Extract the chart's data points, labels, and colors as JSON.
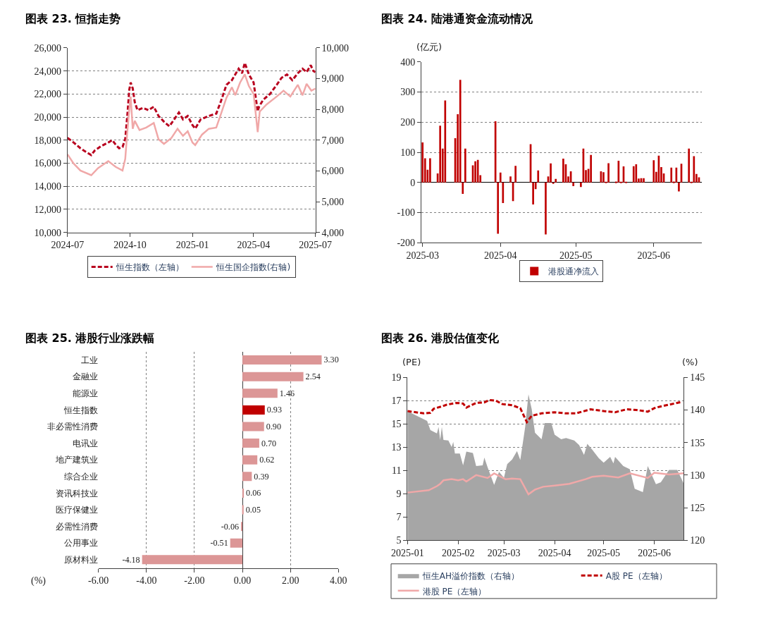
{
  "chart_data": [
    {
      "type": "line",
      "title": "图表 23. 恒指走势",
      "grid": "y",
      "legend": "bottom",
      "xlim": [
        "2024-07",
        "2025-07"
      ],
      "xticks": [
        "2024-07",
        "2024-10",
        "2025-01",
        "2025-04",
        "2025-07"
      ],
      "ylim": [
        10000,
        26000
      ],
      "yticks": [
        {
          "value": 10000,
          "label": "10,000"
        },
        {
          "value": 12000,
          "label": "12,000"
        },
        {
          "value": 14000,
          "label": "14,000"
        },
        {
          "value": 16000,
          "label": "16,000"
        },
        {
          "value": 18000,
          "label": "18,000"
        },
        {
          "value": 20000,
          "label": "20,000"
        },
        {
          "value": 22000,
          "label": "22,000"
        },
        {
          "value": 24000,
          "label": "24,000"
        },
        {
          "value": 26000,
          "label": "26,000"
        }
      ],
      "y2lim": [
        4000,
        10000
      ],
      "y2ticks": [
        {
          "value": 4000,
          "label": "4,000"
        },
        {
          "value": 5000,
          "label": "5,000"
        },
        {
          "value": 6000,
          "label": "6,000"
        },
        {
          "value": 7000,
          "label": "7,000"
        },
        {
          "value": 8000,
          "label": "8,000"
        },
        {
          "value": 9000,
          "label": "9,000"
        },
        {
          "value": 10000,
          "label": "10,000"
        }
      ],
      "series": [
        {
          "name": "恒生指数（左轴）",
          "color": "#b8001e",
          "line_style": "dashed",
          "x": [
            "2024-07-01",
            "2024-07-10",
            "2024-07-20",
            "2024-07-25",
            "2024-08-05",
            "2024-08-10",
            "2024-08-20",
            "2024-08-30",
            "2024-09-05",
            "2024-09-10",
            "2024-09-15",
            "2024-09-20",
            "2024-09-24",
            "2024-09-27",
            "2024-09-30",
            "2024-10-02",
            "2024-10-05",
            "2024-10-08",
            "2024-10-12",
            "2024-10-20",
            "2024-10-28",
            "2024-11-05",
            "2024-11-12",
            "2024-11-20",
            "2024-11-28",
            "2024-12-05",
            "2024-12-12",
            "2024-12-18",
            "2024-12-25",
            "2025-01-01",
            "2025-01-05",
            "2025-01-13",
            "2025-01-25",
            "2025-02-05",
            "2025-02-12",
            "2025-02-20",
            "2025-02-28",
            "2025-03-05",
            "2025-03-10",
            "2025-03-15",
            "2025-03-19",
            "2025-03-25",
            "2025-04-01",
            "2025-04-07",
            "2025-04-09",
            "2025-04-15",
            "2025-04-25",
            "2025-05-05",
            "2025-05-12",
            "2025-05-20",
            "2025-05-28",
            "2025-06-05",
            "2025-06-12",
            "2025-06-18",
            "2025-06-24",
            "2025-06-28",
            "2025-07-01"
          ],
          "values": [
            18200,
            17800,
            17300,
            17100,
            16700,
            17100,
            17500,
            17800,
            18000,
            17600,
            17300,
            17400,
            18100,
            20100,
            22400,
            23000,
            22500,
            21300,
            20600,
            20800,
            20600,
            20900,
            20100,
            19600,
            19200,
            19800,
            20400,
            19800,
            20100,
            19300,
            19000,
            19800,
            20100,
            20300,
            21400,
            22800,
            23200,
            23700,
            24200,
            23800,
            24700,
            23700,
            23000,
            20500,
            20900,
            21500,
            22000,
            22800,
            23400,
            23700,
            23200,
            23800,
            24200,
            23900,
            24500,
            24000,
            23900
          ]
        },
        {
          "name": "恒生国企指数(右轴)",
          "color": "#f0a8a8",
          "line_style": "solid",
          "axis": "y2",
          "x": [
            "2024-07-01",
            "2024-07-10",
            "2024-07-20",
            "2024-08-05",
            "2024-08-15",
            "2024-08-30",
            "2024-09-10",
            "2024-09-20",
            "2024-09-24",
            "2024-09-27",
            "2024-09-30",
            "2024-10-02",
            "2024-10-05",
            "2024-10-08",
            "2024-10-15",
            "2024-10-25",
            "2024-11-05",
            "2024-11-12",
            "2024-11-20",
            "2024-12-01",
            "2024-12-10",
            "2024-12-18",
            "2024-12-25",
            "2025-01-01",
            "2025-01-05",
            "2025-01-15",
            "2025-01-25",
            "2025-02-05",
            "2025-02-12",
            "2025-02-20",
            "2025-02-28",
            "2025-03-05",
            "2025-03-12",
            "2025-03-19",
            "2025-03-25",
            "2025-04-01",
            "2025-04-07",
            "2025-04-10",
            "2025-04-20",
            "2025-05-05",
            "2025-05-15",
            "2025-05-25",
            "2025-06-05",
            "2025-06-12",
            "2025-06-18",
            "2025-06-25",
            "2025-07-01"
          ],
          "values": [
            6540,
            6240,
            6010,
            5860,
            6090,
            6320,
            6130,
            6010,
            6390,
            7260,
            8010,
            8420,
            7370,
            7630,
            7330,
            7410,
            7560,
            7030,
            6880,
            7070,
            7370,
            7140,
            7290,
            6920,
            6840,
            7180,
            7370,
            7410,
            7860,
            8380,
            8720,
            8460,
            8870,
            9140,
            8760,
            8500,
            7260,
            7930,
            8160,
            8420,
            8610,
            8420,
            8800,
            8460,
            8830,
            8610,
            8680
          ]
        }
      ]
    },
    {
      "type": "bar",
      "title": "图表 24. 陆港通资金流动情况",
      "ylabel": "(亿元)",
      "grid": "y",
      "legend": "bottom",
      "xlim": [
        "2025-02-28T12:00",
        "2025-06-20"
      ],
      "xticks": [
        "2025-03",
        "2025-04",
        "2025-05",
        "2025-06"
      ],
      "ylim": [
        -200,
        400
      ],
      "yticks": [
        -200,
        -100,
        0,
        100,
        200,
        300,
        400
      ],
      "x": [
        "2025-03-01",
        "2025-03-02",
        "2025-03-03",
        "2025-03-04",
        "2025-03-07",
        "2025-03-08",
        "2025-03-09",
        "2025-03-10",
        "2025-03-14",
        "2025-03-15",
        "2025-03-16",
        "2025-03-17",
        "2025-03-18",
        "2025-03-21",
        "2025-03-22",
        "2025-03-23",
        "2025-03-24",
        "2025-03-30",
        "2025-03-31",
        "2025-04-01",
        "2025-04-02",
        "2025-04-05",
        "2025-04-06",
        "2025-04-07",
        "2025-04-13",
        "2025-04-14",
        "2025-04-15",
        "2025-04-16",
        "2025-04-19",
        "2025-04-20",
        "2025-04-21",
        "2025-04-22",
        "2025-04-23",
        "2025-04-26",
        "2025-04-27",
        "2025-04-28",
        "2025-04-29",
        "2025-04-30",
        "2025-05-03",
        "2025-05-04",
        "2025-05-05",
        "2025-05-06",
        "2025-05-07",
        "2025-05-11",
        "2025-05-12",
        "2025-05-13",
        "2025-05-14",
        "2025-05-17",
        "2025-05-18",
        "2025-05-19",
        "2025-05-20",
        "2025-05-21",
        "2025-05-24",
        "2025-05-25",
        "2025-05-26",
        "2025-05-27",
        "2025-05-28",
        "2025-06-01",
        "2025-06-02",
        "2025-06-03",
        "2025-06-04",
        "2025-06-05",
        "2025-06-08",
        "2025-06-09",
        "2025-06-10",
        "2025-06-11",
        "2025-06-12",
        "2025-06-15",
        "2025-06-16",
        "2025-06-17",
        "2025-06-18",
        "2025-06-19"
      ],
      "series": [
        {
          "name": "港股通净流入",
          "color": "#c00000",
          "values": [
            133,
            80,
            42,
            80,
            30,
            188,
            112,
            272,
            147,
            226,
            340,
            -38,
            112,
            57,
            70,
            75,
            24,
            203,
            -170,
            33,
            -68,
            20,
            -62,
            55,
            127,
            -73,
            -22,
            40,
            -172,
            20,
            63,
            -3,
            12,
            79,
            60,
            20,
            37,
            -12,
            -15,
            112,
            41,
            45,
            91,
            37,
            34,
            2,
            64,
            3,
            72,
            2,
            53,
            2,
            54,
            60,
            13,
            14,
            14,
            74,
            35,
            89,
            51,
            30,
            49,
            3,
            49,
            -30,
            62,
            112,
            2,
            87,
            28,
            17
          ]
        }
      ]
    },
    {
      "type": "bar",
      "title": "图表 25. 港股行业涨跌幅",
      "orientation": "horizontal",
      "xlabel": "(%)",
      "grid": "x",
      "categories": [
        "工业",
        "金融业",
        "能源业",
        "恒生指数",
        "非必需性消费",
        "电讯业",
        "地产建筑业",
        "综合企业",
        "资讯科技业",
        "医疗保健业",
        "必需性消费",
        "公用事业",
        "原材料业"
      ],
      "values": [
        3.3,
        2.54,
        1.46,
        0.93,
        0.9,
        0.7,
        0.62,
        0.39,
        0.06,
        0.05,
        -0.06,
        -0.51,
        -4.18
      ],
      "value_labels": [
        "3.30",
        "2.54",
        "1.46",
        "0.93",
        "0.90",
        "0.70",
        "0.62",
        "0.39",
        "0.06",
        "0.05",
        "-0.06",
        "-0.51",
        "-4.18"
      ],
      "colors": [
        "#dc9696",
        "#dc9696",
        "#dc9696",
        "#c00000",
        "#dc9696",
        "#dc9696",
        "#dc9696",
        "#dc9696",
        "#dc9696",
        "#dc9696",
        "#dc9696",
        "#dc9696",
        "#dc9696"
      ],
      "xlim": [
        -6,
        4
      ],
      "xticks": [
        {
          "value": -6,
          "label": "-6.00"
        },
        {
          "value": -4,
          "label": "-4.00"
        },
        {
          "value": -2,
          "label": "-2.00"
        },
        {
          "value": 0,
          "label": "0.00"
        },
        {
          "value": 2,
          "label": "2.00"
        },
        {
          "value": 4,
          "label": "4.00"
        }
      ]
    },
    {
      "type": "line",
      "title": "图表 26. 港股估值变化",
      "ylabel": "(PE)",
      "y2label": "(%)",
      "grid": "y",
      "legend": "bottom",
      "xlim": [
        "2025-01-01",
        "2025-06-19"
      ],
      "xticks": [
        "2025-01",
        "2025-02",
        "2025-03",
        "2025-04",
        "2025-05",
        "2025-06"
      ],
      "ylim": [
        5,
        19
      ],
      "yticks": [
        5,
        7,
        9,
        11,
        13,
        15,
        17,
        19
      ],
      "y2lim": [
        120,
        145
      ],
      "y2ticks": [
        120,
        125,
        130,
        135,
        140,
        145
      ],
      "series": [
        {
          "name": "恒生AH溢价指数（右轴）",
          "type": "area",
          "axis": "y2",
          "color": "#a6a6a6",
          "x": [
            "2025-01-01",
            "2025-01-13",
            "2025-01-15",
            "2025-01-19",
            "2025-01-20",
            "2025-01-21",
            "2025-01-22",
            "2025-01-23",
            "2025-01-26",
            "2025-01-28",
            "2025-01-29",
            "2025-01-30",
            "2025-02-02",
            "2025-02-04",
            "2025-02-06",
            "2025-02-10",
            "2025-02-12",
            "2025-02-16",
            "2025-02-17",
            "2025-02-19",
            "2025-02-23",
            "2025-02-26",
            "2025-03-01",
            "2025-03-03",
            "2025-03-06",
            "2025-03-09",
            "2025-03-11",
            "2025-03-14",
            "2025-03-16",
            "2025-03-18",
            "2025-03-20",
            "2025-03-24",
            "2025-03-26",
            "2025-03-30",
            "2025-04-01",
            "2025-04-05",
            "2025-04-08",
            "2025-04-13",
            "2025-04-16",
            "2025-04-19",
            "2025-04-21",
            "2025-04-24",
            "2025-04-28",
            "2025-05-01",
            "2025-05-05",
            "2025-05-07",
            "2025-05-08",
            "2025-05-13",
            "2025-05-17",
            "2025-05-20",
            "2025-05-25",
            "2025-05-28",
            "2025-06-02",
            "2025-06-05",
            "2025-06-10",
            "2025-06-15",
            "2025-06-19"
          ],
          "values": [
            139.8,
            138.3,
            136.9,
            136.4,
            137.4,
            135.4,
            137.4,
            135.4,
            135.3,
            134.3,
            135.1,
            133.3,
            133.3,
            131.5,
            133.6,
            133.4,
            131.4,
            131.5,
            132.7,
            131.2,
            128.5,
            130.5,
            129.6,
            131.7,
            132.4,
            133.7,
            132.3,
            137.4,
            142.4,
            140.1,
            136.5,
            135.5,
            138.0,
            138.0,
            136.2,
            135.5,
            135.7,
            135.3,
            134.6,
            133.1,
            134.8,
            133.9,
            132.6,
            131.9,
            132.8,
            131.8,
            132.8,
            131.4,
            130.9,
            127.9,
            127.4,
            131.4,
            128.6,
            128.9,
            130.8,
            130.8,
            128.7
          ]
        },
        {
          "name": "A股 PE（左轴）",
          "color": "#c00000",
          "line_style": "dashed",
          "x": [
            "2025-01-01",
            "2025-01-11",
            "2025-01-15",
            "2025-01-17",
            "2025-01-22",
            "2025-01-25",
            "2025-01-31",
            "2025-02-04",
            "2025-02-06",
            "2025-02-12",
            "2025-02-17",
            "2025-02-20",
            "2025-02-24",
            "2025-02-28",
            "2025-03-06",
            "2025-03-11",
            "2025-03-15",
            "2025-03-18",
            "2025-03-24",
            "2025-04-01",
            "2025-04-08",
            "2025-04-14",
            "2025-04-23",
            "2025-05-01",
            "2025-05-08",
            "2025-05-15",
            "2025-05-21",
            "2025-05-28",
            "2025-06-01",
            "2025-06-05",
            "2025-06-10",
            "2025-06-18"
          ],
          "values": [
            16.1,
            15.9,
            15.95,
            16.3,
            16.5,
            16.65,
            16.8,
            16.75,
            16.4,
            16.8,
            16.85,
            17.05,
            17.0,
            16.7,
            16.6,
            16.35,
            15.15,
            15.7,
            15.9,
            16.0,
            15.9,
            15.9,
            16.25,
            16.1,
            16.0,
            16.25,
            16.2,
            16.05,
            16.35,
            16.5,
            16.65,
            16.9
          ]
        },
        {
          "name": "港股 PE（左轴）",
          "color": "#f0a8a8",
          "line_style": "solid",
          "x": [
            "2025-01-01",
            "2025-01-14",
            "2025-01-19",
            "2025-01-21",
            "2025-01-23",
            "2025-01-28",
            "2025-02-01",
            "2025-02-04",
            "2025-02-06",
            "2025-02-12",
            "2025-02-19",
            "2025-02-23",
            "2025-03-02",
            "2025-03-06",
            "2025-03-11",
            "2025-03-16",
            "2025-03-20",
            "2025-03-25",
            "2025-04-01",
            "2025-04-10",
            "2025-04-20",
            "2025-04-24",
            "2025-05-01",
            "2025-05-10",
            "2025-05-17",
            "2025-05-28",
            "2025-06-01",
            "2025-06-10",
            "2025-06-19"
          ],
          "values": [
            9.1,
            9.3,
            9.65,
            9.85,
            10.15,
            10.25,
            10.15,
            10.25,
            10.05,
            10.6,
            10.35,
            10.75,
            10.25,
            10.3,
            10.25,
            8.95,
            9.35,
            9.6,
            9.7,
            9.85,
            10.25,
            10.45,
            10.55,
            10.4,
            10.75,
            10.35,
            10.8,
            10.65,
            10.75
          ]
        }
      ]
    }
  ]
}
